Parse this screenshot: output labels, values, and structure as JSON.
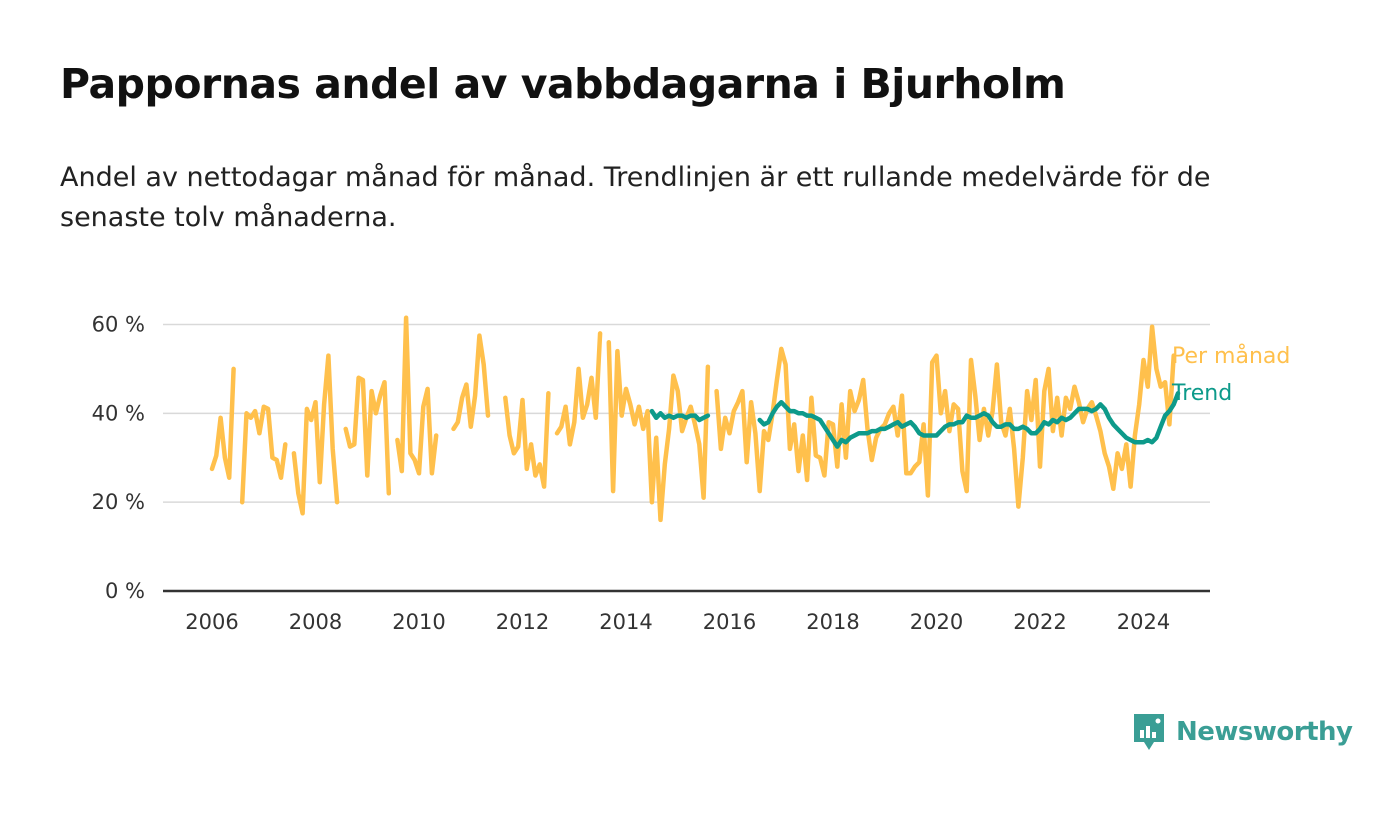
{
  "title": "Pappornas andel av vabbdagarna i Bjurholm",
  "subtitle": "Andel av nettodagar månad för månad. Trendlinjen är ett rullande medelvärde för de senaste tolv månaderna.",
  "brand": {
    "name": "Newsworthy",
    "icon": "newsworthy-logo-icon",
    "color": "#3a9e95"
  },
  "colors": {
    "monthly": "#ffc04c",
    "trend": "#0d9a8a",
    "grid": "#d9d9d9",
    "axis": "#333333"
  },
  "chart_data": {
    "type": "line",
    "grid": true,
    "ylim": [
      0,
      60
    ],
    "yticks": [
      "0 %",
      "20 %",
      "40 %",
      "60 %"
    ],
    "ytick_values": [
      0,
      20,
      40,
      60
    ],
    "xticks": [
      "2006",
      "2008",
      "2010",
      "2012",
      "2014",
      "2016",
      "2018",
      "2020",
      "2022",
      "2024"
    ],
    "xtick_values": [
      2006,
      2008,
      2010,
      2012,
      2014,
      2016,
      2018,
      2020,
      2022,
      2024
    ],
    "legend": "right end labels",
    "series": [
      {
        "name": "Per månad",
        "x_start": "2006-01",
        "values": [
          27.5,
          30.5,
          39,
          30,
          25.5,
          50,
          null,
          20,
          40,
          39,
          40.5,
          35.5,
          41.5,
          41,
          30,
          29.5,
          25.5,
          33,
          null,
          31,
          22,
          17.5,
          41,
          38.5,
          42.5,
          24.5,
          42,
          53,
          32,
          20,
          null,
          36.5,
          32.5,
          33,
          48,
          47.5,
          26,
          45,
          40,
          44,
          47,
          22,
          null,
          34,
          27,
          61.5,
          31,
          29.5,
          26.5,
          41.5,
          45.5,
          26.5,
          35,
          null,
          null,
          null,
          36.5,
          38,
          43.5,
          46.5,
          37,
          44,
          57.5,
          51,
          39.5,
          null,
          null,
          null,
          43.5,
          35,
          31,
          32.5,
          43,
          27.5,
          33,
          26,
          28.5,
          23.5,
          44.5,
          null,
          35.5,
          37,
          41.5,
          33,
          38,
          50,
          39,
          42,
          48,
          39,
          58,
          null,
          56,
          22.5,
          54,
          39.5,
          45.5,
          42,
          37.5,
          41.5,
          36.5,
          40.5,
          20,
          34.5,
          16,
          28.5,
          36.5,
          48.5,
          45,
          36,
          39,
          41.5,
          37.5,
          33,
          21,
          50.5,
          null,
          45,
          32,
          39,
          35.5,
          40.5,
          42.5,
          45,
          29,
          42.5,
          35.5,
          22.5,
          36,
          34,
          40,
          47.5,
          54.5,
          51,
          32,
          37.5,
          27,
          35,
          25,
          43.5,
          30.5,
          30,
          26,
          38,
          37.5,
          28,
          42,
          30,
          45,
          40.5,
          43,
          47.5,
          36.5,
          29.5,
          34.5,
          36.5,
          37.5,
          40,
          41.5,
          35,
          44,
          26.5,
          26.5,
          28,
          29,
          37.5,
          21.5,
          51.5,
          53,
          40,
          45,
          36,
          42,
          41,
          27,
          22.5,
          52,
          44,
          34,
          41,
          35,
          40.5,
          51,
          38,
          35,
          41,
          32,
          19,
          30,
          45,
          38.5,
          47.5,
          28,
          45,
          50,
          36,
          43.5,
          35,
          43.5,
          41,
          46,
          42.5,
          38,
          41,
          42.5,
          39.5,
          36,
          31,
          28,
          23,
          31,
          27.5,
          33,
          23.5,
          35,
          42,
          52,
          46,
          59.5,
          50,
          46,
          47,
          37.5,
          53
        ]
      },
      {
        "name": "Trend",
        "x_start": "2014-07",
        "values": [
          40.5,
          39,
          40,
          39,
          39.5,
          39,
          39.5,
          39.5,
          39,
          39.5,
          39.5,
          38.5,
          39,
          39.5,
          null,
          null,
          null,
          null,
          null,
          null,
          null,
          null,
          null,
          null,
          null,
          38.5,
          37.5,
          38,
          40,
          41.5,
          42.5,
          41.5,
          40.5,
          40.5,
          40,
          40,
          39.5,
          39.5,
          39,
          38.5,
          37,
          35.5,
          34,
          32.5,
          34,
          33.5,
          34.5,
          35,
          35.5,
          35.5,
          35.5,
          36,
          36,
          36.5,
          36.5,
          37,
          37.5,
          38,
          37,
          37.5,
          38,
          37,
          35.5,
          35,
          35,
          35,
          35,
          36,
          37,
          37.5,
          37.5,
          38,
          38,
          39.5,
          39,
          39,
          39.5,
          40,
          39.5,
          38,
          37,
          37,
          37.5,
          37.5,
          36.5,
          36.5,
          37,
          36.5,
          35.5,
          35.5,
          36.5,
          38,
          37.5,
          38.5,
          38,
          39,
          38.5,
          39,
          40,
          41,
          41,
          41,
          40.5,
          41,
          42,
          41,
          39,
          37.5,
          36.5,
          35.5,
          34.5,
          34,
          33.5,
          33.5,
          33.5,
          34,
          33.5,
          34.5,
          37,
          39.5,
          40.5,
          42,
          44.5
        ]
      }
    ]
  }
}
